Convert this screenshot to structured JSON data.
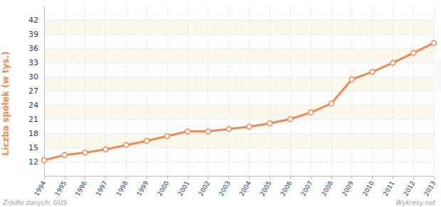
{
  "chart_data": {
    "type": "line",
    "y_label": "Liczba spółek (w tys.)",
    "source": "Źródło danych: GUS",
    "credit": "Wykresy.net",
    "watermark": "wykresy.net",
    "categories": [
      "1994",
      "1995",
      "1996",
      "1997",
      "1998",
      "1999",
      "2000",
      "2001",
      "2002",
      "2003",
      "2004",
      "2005",
      "2006",
      "2007",
      "2008",
      "2009",
      "2010",
      "2011",
      "2012",
      "2013"
    ],
    "values": [
      12.3,
      13.4,
      13.9,
      14.6,
      15.5,
      16.4,
      17.4,
      18.4,
      18.4,
      18.9,
      19.4,
      20.1,
      21.0,
      22.4,
      24.3,
      29.4,
      31.0,
      32.9,
      35.0,
      37.1
    ],
    "color": "#f0894f",
    "marker": "circle",
    "ylim": [
      9,
      45
    ],
    "yticks": [
      12,
      15,
      18,
      21,
      24,
      27,
      30,
      33,
      36,
      39,
      42
    ],
    "grid": true
  }
}
